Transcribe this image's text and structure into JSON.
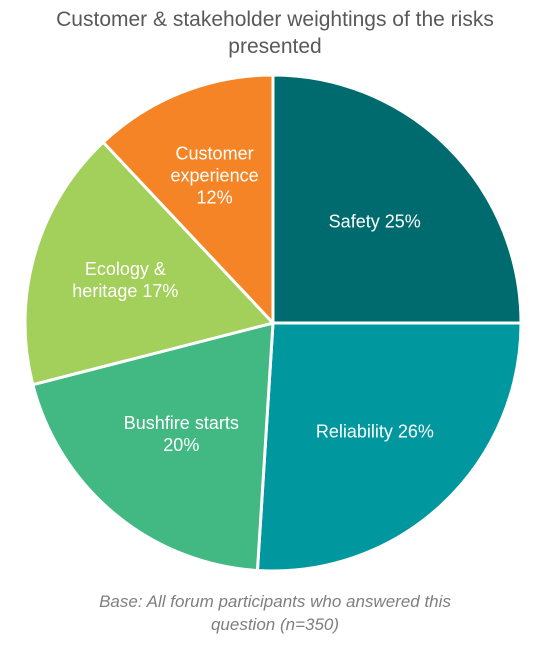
{
  "chart_data": {
    "type": "pie",
    "title_lines": [
      "Customer & stakeholder weightings of the risks",
      "presented"
    ],
    "slices": [
      {
        "name": "Safety",
        "value": 25,
        "color": "#006B6E",
        "label_lines": [
          "Safety 25%"
        ]
      },
      {
        "name": "Reliability",
        "value": 26,
        "color": "#00979F",
        "label_lines": [
          "Reliability 26%"
        ]
      },
      {
        "name": "Bushfire starts",
        "value": 20,
        "color": "#42B883",
        "label_lines": [
          "Bushfire starts",
          "20%"
        ]
      },
      {
        "name": "Ecology & heritage",
        "value": 17,
        "color": "#A3CF5B",
        "label_lines": [
          "Ecology &",
          "heritage 17%"
        ]
      },
      {
        "name": "Customer experience",
        "value": 12,
        "color": "#F58426",
        "label_lines": [
          "Customer",
          "experience",
          "12%"
        ]
      }
    ],
    "start": "12 o'clock",
    "direction": "clockwise",
    "legend": "none"
  },
  "footnote_lines": [
    "Base: All forum participants who answered this",
    "question (n=350)"
  ]
}
